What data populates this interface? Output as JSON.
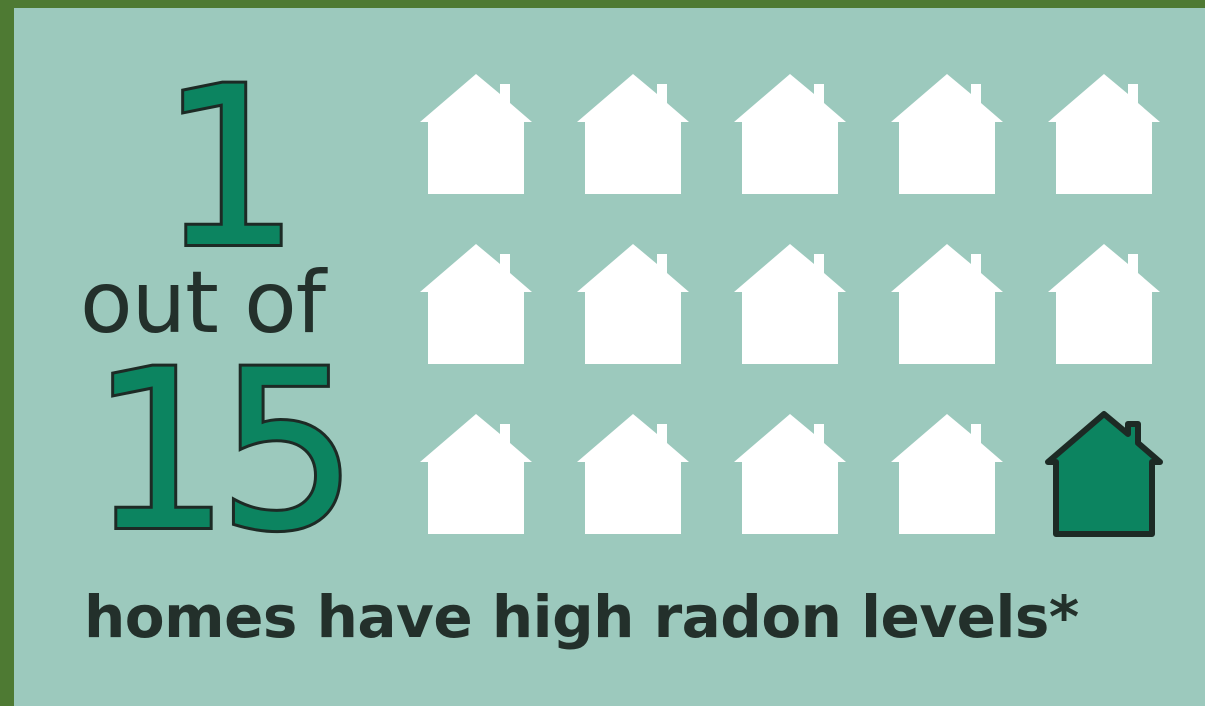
{
  "stat": {
    "numerator": "1",
    "connector": "out of",
    "denominator": "15"
  },
  "caption": "homes have high radon levels*",
  "pictogram": {
    "rows": 3,
    "columns": 5,
    "total": 15,
    "highlighted": 1,
    "icon": "house-icon",
    "colors": {
      "normal": "#ffffff",
      "highlighted": "#0c8460",
      "highlighted_outline": "#1d2a25",
      "background": "#9cc9bd",
      "border": "#4e7a33"
    }
  }
}
